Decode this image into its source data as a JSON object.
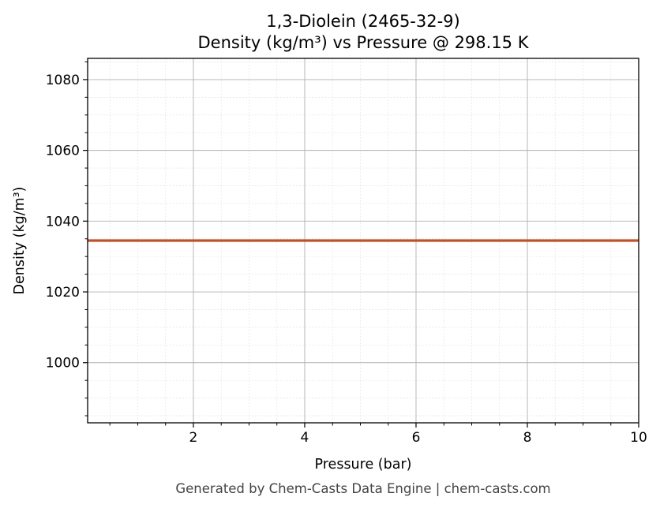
{
  "chart_data": {
    "type": "line",
    "title": "1,3-Diolein (2465-32-9)",
    "subtitle": "Density (kg/m³) vs Pressure @ 298.15 K",
    "xlabel": "Pressure (bar)",
    "ylabel": "Density (kg/m³)",
    "xlim": [
      0.1,
      10
    ],
    "ylim": [
      983,
      1086
    ],
    "x_ticks": [
      2,
      4,
      6,
      8,
      10
    ],
    "y_ticks": [
      1000,
      1020,
      1040,
      1060,
      1080
    ],
    "grid": true,
    "minor_grid": true,
    "series": [
      {
        "color": "#c0522b",
        "x": [
          0.1,
          1,
          2,
          3,
          4,
          5,
          6,
          7,
          8,
          9,
          10
        ],
        "y": [
          1034.5,
          1034.5,
          1034.5,
          1034.5,
          1034.5,
          1034.5,
          1034.5,
          1034.5,
          1034.5,
          1034.5,
          1034.5
        ]
      }
    ]
  },
  "footer": "Generated by Chem-Casts Data Engine | chem-casts.com"
}
